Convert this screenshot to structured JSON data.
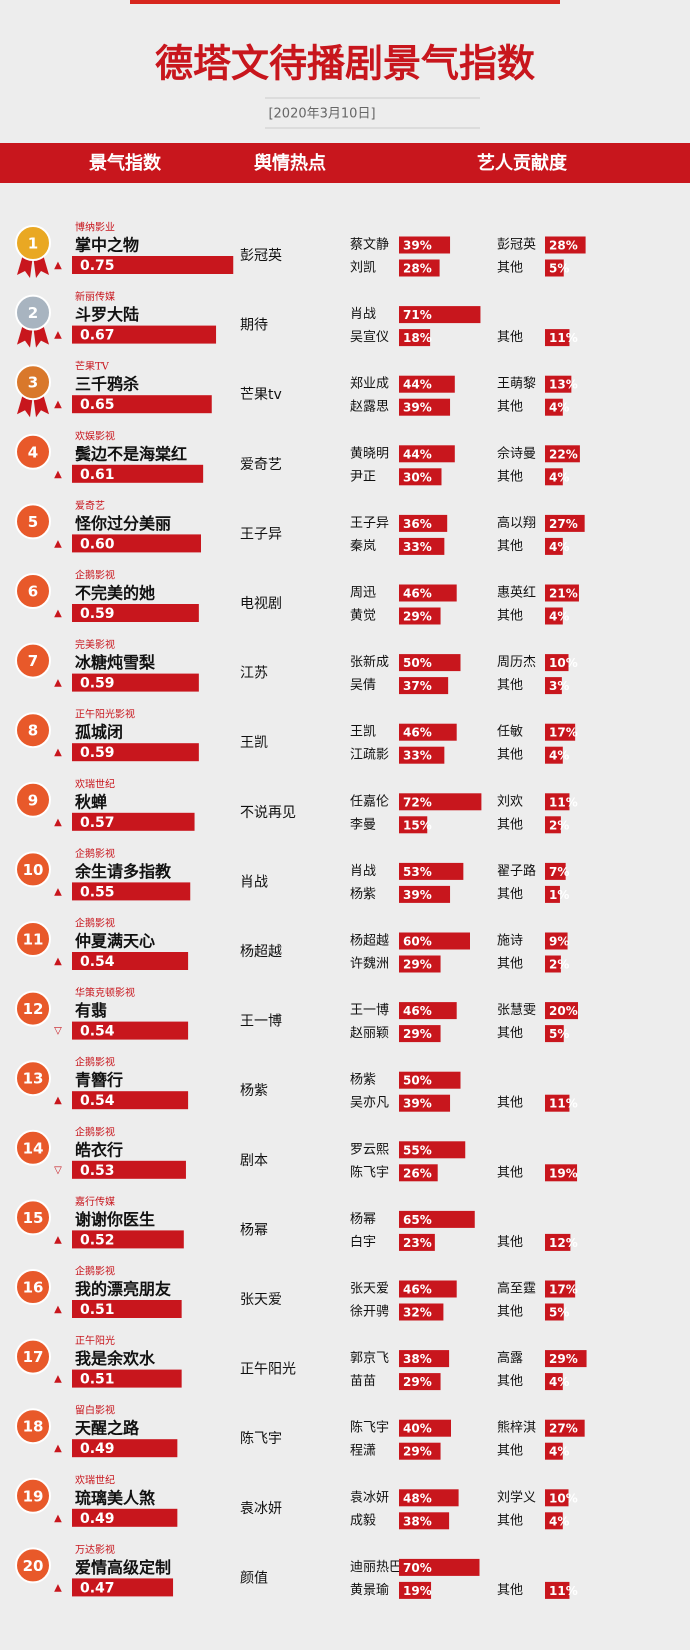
{
  "header": {
    "title": "德塔文待播剧景气指数",
    "date": "[2020年3月10日]",
    "columns": [
      "景气指数",
      "舆情热点",
      "艺人贡献度"
    ]
  },
  "rows": [
    {
      "rank": 1,
      "company": "博纳影业",
      "title": "掌中之物",
      "index": 0.75,
      "trend": "▲",
      "hotspot": "彭冠英",
      "left": [
        {
          "name": "蔡文静",
          "share": 39,
          "share_label": "39%"
        },
        {
          "name": "刘凯",
          "share": 28,
          "share_label": "28%"
        }
      ],
      "right": [
        {
          "name": "彭冠英",
          "share": 28,
          "share_label": "28%"
        },
        {
          "name": "其他",
          "share": 5,
          "share_label": "5%"
        }
      ]
    },
    {
      "rank": 2,
      "company": "新丽传媒",
      "title": "斗罗大陆",
      "index": 0.67,
      "trend": "▲",
      "hotspot": "期待",
      "left": [
        {
          "name": "肖战",
          "share": 71,
          "share_label": "71%"
        },
        {
          "name": "吴宣仪",
          "share": 18,
          "share_label": "18%"
        }
      ],
      "right": [
        null,
        {
          "name": "其他",
          "share": 11,
          "share_label": "11%"
        }
      ]
    },
    {
      "rank": 3,
      "company": "芒果TV",
      "title": "三千鸦杀",
      "index": 0.65,
      "trend": "▲",
      "hotspot": "芒果tv",
      "left": [
        {
          "name": "郑业成",
          "share": 44,
          "share_label": "44%"
        },
        {
          "name": "赵露思",
          "share": 39,
          "share_label": "39%"
        }
      ],
      "right": [
        {
          "name": "王萌黎",
          "share": 13,
          "share_label": "13%"
        },
        {
          "name": "其他",
          "share": 4,
          "share_label": "4%"
        }
      ]
    },
    {
      "rank": 4,
      "company": "欢娱影视",
      "title": "鬓边不是海棠红",
      "index": 0.61,
      "trend": "▲",
      "hotspot": "爱奇艺",
      "left": [
        {
          "name": "黄晓明",
          "share": 44,
          "share_label": "44%"
        },
        {
          "name": "尹正",
          "share": 30,
          "share_label": "30%"
        }
      ],
      "right": [
        {
          "name": "佘诗曼",
          "share": 22,
          "share_label": "22%"
        },
        {
          "name": "其他",
          "share": 4,
          "share_label": "4%"
        }
      ]
    },
    {
      "rank": 5,
      "company": "爱奇艺",
      "title": "怪你过分美丽",
      "index": 0.6,
      "index_label": "0.60",
      "trend": "▲",
      "hotspot": "王子异",
      "left": [
        {
          "name": "王子异",
          "share": 36,
          "share_label": "36%"
        },
        {
          "name": "秦岚",
          "share": 33,
          "share_label": "33%"
        }
      ],
      "right": [
        {
          "name": "高以翔",
          "share": 27,
          "share_label": "27%"
        },
        {
          "name": "其他",
          "share": 4,
          "share_label": "4%"
        }
      ]
    },
    {
      "rank": 6,
      "company": "企鹅影视",
      "title": "不完美的她",
      "index": 0.59,
      "trend": "▲",
      "hotspot": "电视剧",
      "left": [
        {
          "name": "周迅",
          "share": 46,
          "share_label": "46%"
        },
        {
          "name": "黄觉",
          "share": 29,
          "share_label": "29%"
        }
      ],
      "right": [
        {
          "name": "惠英红",
          "share": 21,
          "share_label": "21%"
        },
        {
          "name": "其他",
          "share": 4,
          "share_label": "4%"
        }
      ]
    },
    {
      "rank": 7,
      "company": "完美影视",
      "title": "冰糖炖雪梨",
      "index": 0.59,
      "trend": "▲",
      "hotspot": "江苏",
      "left": [
        {
          "name": "张新成",
          "share": 50,
          "share_label": "50%"
        },
        {
          "name": "吴倩",
          "share": 37,
          "share_label": "37%"
        }
      ],
      "right": [
        {
          "name": "周历杰",
          "share": 10,
          "share_label": "10%"
        },
        {
          "name": "其他",
          "share": 3,
          "share_label": "3%"
        }
      ]
    },
    {
      "rank": 8,
      "company": "正午阳光影视",
      "title": "孤城闭",
      "index": 0.59,
      "trend": "▲",
      "hotspot": "王凯",
      "left": [
        {
          "name": "王凯",
          "share": 46,
          "share_label": "46%"
        },
        {
          "name": "江疏影",
          "share": 33,
          "share_label": "33%"
        }
      ],
      "right": [
        {
          "name": "任敏",
          "share": 17,
          "share_label": "17%"
        },
        {
          "name": "其他",
          "share": 4,
          "share_label": "4%"
        }
      ]
    },
    {
      "rank": 9,
      "company": "欢瑞世纪",
      "title": "秋蝉",
      "index": 0.57,
      "trend": "▲",
      "hotspot": "不说再见",
      "left": [
        {
          "name": "任嘉伦",
          "share": 72,
          "share_label": "72%"
        },
        {
          "name": "李曼",
          "share": 15,
          "share_label": "15%"
        }
      ],
      "right": [
        {
          "name": "刘欢",
          "share": 11,
          "share_label": "11%"
        },
        {
          "name": "其他",
          "share": 2,
          "share_label": "2%"
        }
      ]
    },
    {
      "rank": 10,
      "company": "企鹅影视",
      "title": "余生请多指教",
      "index": 0.55,
      "trend": "▲",
      "hotspot": "肖战",
      "left": [
        {
          "name": "肖战",
          "share": 53,
          "share_label": "53%"
        },
        {
          "name": "杨紫",
          "share": 39,
          "share_label": "39%"
        }
      ],
      "right": [
        {
          "name": "翟子路",
          "share": 7,
          "share_label": "7%"
        },
        {
          "name": "其他",
          "share": 1,
          "share_label": "1%"
        }
      ]
    },
    {
      "rank": 11,
      "company": "企鹅影视",
      "title": "仲夏满天心",
      "index": 0.54,
      "trend": "▲",
      "hotspot": "杨超越",
      "left": [
        {
          "name": "杨超越",
          "share": 60,
          "share_label": "60%"
        },
        {
          "name": "许魏洲",
          "share": 29,
          "share_label": "29%"
        }
      ],
      "right": [
        {
          "name": "施诗",
          "share": 9,
          "share_label": "9%"
        },
        {
          "name": "其他",
          "share": 2,
          "share_label": "2%"
        }
      ]
    },
    {
      "rank": 12,
      "company": "华策克顿影视",
      "title": "有翡",
      "index": 0.54,
      "trend": "▽",
      "hotspot": "王一博",
      "left": [
        {
          "name": "王一博",
          "share": 46,
          "share_label": "46%"
        },
        {
          "name": "赵丽颖",
          "share": 29,
          "share_label": "29%"
        }
      ],
      "right": [
        {
          "name": "张慧雯",
          "share": 20,
          "share_label": "20%"
        },
        {
          "name": "其他",
          "share": 5,
          "share_label": "5%"
        }
      ]
    },
    {
      "rank": 13,
      "company": "企鹅影视",
      "title": "青簪行",
      "index": 0.54,
      "trend": "▲",
      "hotspot": "杨紫",
      "left": [
        {
          "name": "杨紫",
          "share": 50,
          "share_label": "50%"
        },
        {
          "name": "吴亦凡",
          "share": 39,
          "share_label": "39%"
        }
      ],
      "right": [
        null,
        {
          "name": "其他",
          "share": 11,
          "share_label": "11%"
        }
      ]
    },
    {
      "rank": 14,
      "company": "企鹅影视",
      "title": "皓衣行",
      "index": 0.53,
      "trend": "▽",
      "hotspot": "剧本",
      "left": [
        {
          "name": "罗云熙",
          "share": 55,
          "share_label": "55%"
        },
        {
          "name": "陈飞宇",
          "share": 26,
          "share_label": "26%"
        }
      ],
      "right": [
        null,
        {
          "name": "其他",
          "share": 19,
          "share_label": "19%"
        }
      ]
    },
    {
      "rank": 15,
      "company": "嘉行传媒",
      "title": "谢谢你医生",
      "index": 0.52,
      "trend": "▲",
      "hotspot": "杨幂",
      "left": [
        {
          "name": "杨幂",
          "share": 65,
          "share_label": "65%"
        },
        {
          "name": "白宇",
          "share": 23,
          "share_label": "23%"
        }
      ],
      "right": [
        null,
        {
          "name": "其他",
          "share": 12,
          "share_label": "12%"
        }
      ]
    },
    {
      "rank": 16,
      "company": "企鹅影视",
      "title": "我的漂亮朋友",
      "index": 0.51,
      "trend": "▲",
      "hotspot": "张天爱",
      "left": [
        {
          "name": "张天爱",
          "share": 46,
          "share_label": "46%"
        },
        {
          "name": "徐开骋",
          "share": 32,
          "share_label": "32%"
        }
      ],
      "right": [
        {
          "name": "高至霆",
          "share": 17,
          "share_label": "17%"
        },
        {
          "name": "其他",
          "share": 5,
          "share_label": "5%"
        }
      ]
    },
    {
      "rank": 17,
      "company": "正午阳光",
      "title": "我是余欢水",
      "index": 0.51,
      "trend": "▲",
      "hotspot": "正午阳光",
      "left": [
        {
          "name": "郭京飞",
          "share": 38,
          "share_label": "38%"
        },
        {
          "name": "苗苗",
          "share": 29,
          "share_label": "29%"
        }
      ],
      "right": [
        {
          "name": "高露",
          "share": 29,
          "share_label": "29%"
        },
        {
          "name": "其他",
          "share": 4,
          "share_label": "4%"
        }
      ]
    },
    {
      "rank": 18,
      "company": "留白影视",
      "title": "天醒之路",
      "index": 0.49,
      "trend": "▲",
      "hotspot": "陈飞宇",
      "left": [
        {
          "name": "陈飞宇",
          "share": 40,
          "share_label": "40%"
        },
        {
          "name": "程潇",
          "share": 29,
          "share_label": "29%"
        }
      ],
      "right": [
        {
          "name": "熊梓淇",
          "share": 27,
          "share_label": "27%"
        },
        {
          "name": "其他",
          "share": 4,
          "share_label": "4%"
        }
      ]
    },
    {
      "rank": 19,
      "company": "欢瑞世纪",
      "title": "琉璃美人煞",
      "index": 0.49,
      "trend": "▲",
      "hotspot": "袁冰妍",
      "left": [
        {
          "name": "袁冰妍",
          "share": 48,
          "share_label": "48%"
        },
        {
          "name": "成毅",
          "share": 38,
          "share_label": "38%"
        }
      ],
      "right": [
        {
          "name": "刘学义",
          "share": 10,
          "share_label": "10%"
        },
        {
          "name": "其他",
          "share": 4,
          "share_label": "4%"
        }
      ]
    },
    {
      "rank": 20,
      "company": "万达影视",
      "title": "爱情高级定制",
      "index": 0.47,
      "trend": "▲",
      "hotspot": "颜值",
      "left": [
        {
          "name": "迪丽热巴",
          "share": 70,
          "share_label": "70%"
        },
        {
          "name": "黄景瑜",
          "share": 19,
          "share_label": "19%"
        }
      ],
      "right": [
        null,
        {
          "name": "其他",
          "share": 11,
          "share_label": "11%"
        }
      ]
    }
  ]
}
